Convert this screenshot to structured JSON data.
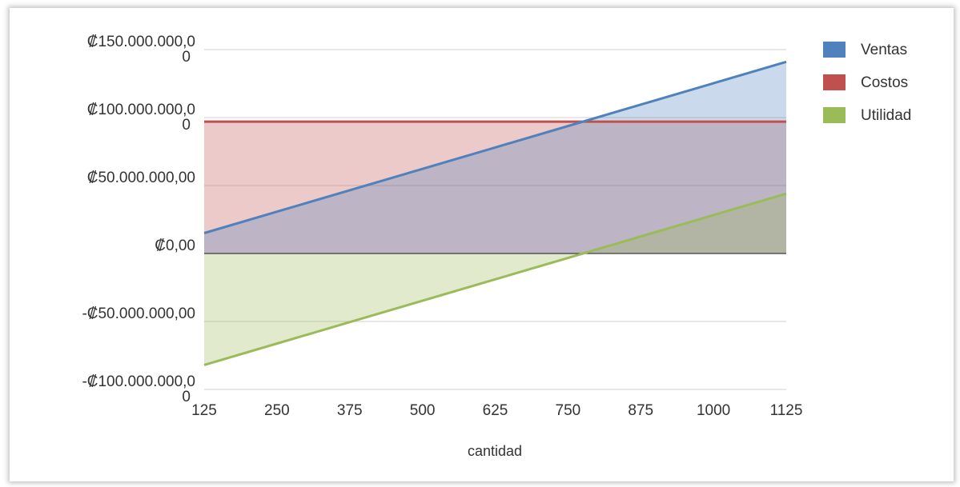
{
  "chart_data": {
    "type": "area",
    "x": [
      125,
      250,
      375,
      500,
      625,
      750,
      875,
      1000,
      1125
    ],
    "xlabel": "cantidad",
    "ylabel": "",
    "ylim": [
      -100000000,
      150000000
    ],
    "yticks": [
      150000000,
      100000000,
      50000000,
      0,
      -50000000,
      -100000000
    ],
    "ytick_labels": [
      [
        "₡150.000.000,0",
        "0"
      ],
      [
        "₡100.000.000,0",
        "0"
      ],
      [
        "₡50.000.000,00"
      ],
      [
        "₡0,00"
      ],
      [
        "-₡50.000.000,00"
      ],
      [
        "-₡100.000.000,0",
        "0"
      ]
    ],
    "xtick_labels": [
      "125",
      "250",
      "375",
      "500",
      "625",
      "750",
      "875",
      "1000",
      "1125"
    ],
    "grid": true,
    "legend_position": "right",
    "series": [
      {
        "name": "Costos",
        "color": "#C0504D",
        "fill": "rgba(192,80,77,0.30)",
        "values": [
          97000000,
          97000000,
          97000000,
          97000000,
          97000000,
          97000000,
          97000000,
          97000000,
          97000000
        ]
      },
      {
        "name": "Ventas",
        "color": "#4F81BD",
        "fill": "rgba(79,129,189,0.30)",
        "values": [
          15000000,
          30750000,
          46500000,
          62250000,
          78000000,
          93750000,
          109500000,
          125250000,
          141000000
        ]
      },
      {
        "name": "Utilidad",
        "color": "#9BBB59",
        "fill": "rgba(155,187,89,0.30)",
        "values": [
          -82000000,
          -66250000,
          -50500000,
          -34750000,
          -19000000,
          -3250000,
          12500000,
          28250000,
          44000000
        ]
      }
    ],
    "legend": [
      {
        "name": "Ventas",
        "color": "#4F81BD"
      },
      {
        "name": "Costos",
        "color": "#C0504D"
      },
      {
        "name": "Utilidad",
        "color": "#9BBB59"
      }
    ]
  }
}
